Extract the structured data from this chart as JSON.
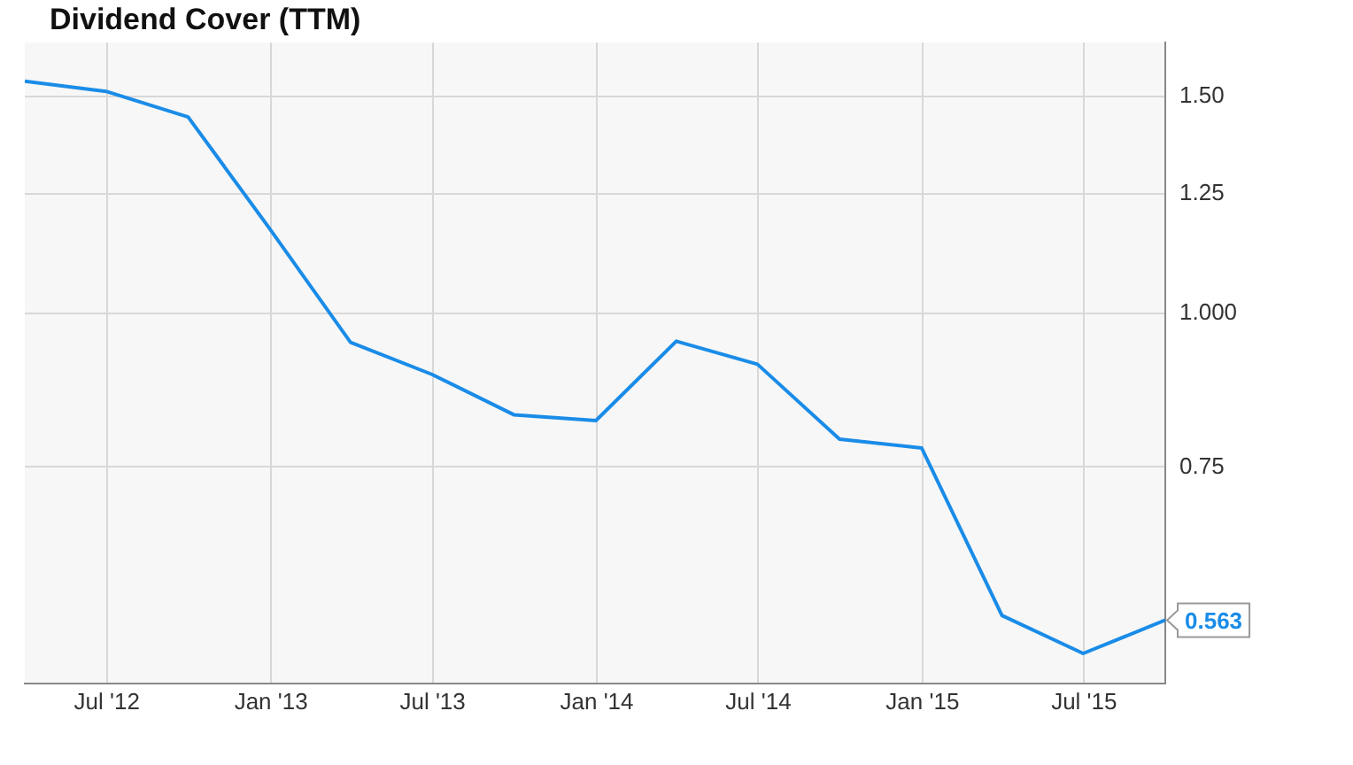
{
  "chart_data": {
    "type": "line",
    "title": "Dividend Cover (TTM)",
    "x": [
      "2012-03-31",
      "2012-06-30",
      "2012-09-30",
      "2012-12-31",
      "2013-03-31",
      "2013-06-30",
      "2013-09-30",
      "2013-12-31",
      "2014-03-31",
      "2014-06-30",
      "2014-09-30",
      "2014-12-31",
      "2015-03-31",
      "2015-06-30",
      "2015-09-30"
    ],
    "series": [
      {
        "color": "#1a8ce8",
        "values": [
          1.544,
          1.515,
          1.444,
          1.17,
          0.947,
          0.892,
          0.827,
          0.818,
          0.949,
          0.909,
          0.79,
          0.777,
          0.568,
          0.529,
          0.563
        ],
        "value_labels": [
          null,
          null,
          null,
          null,
          null,
          null,
          null,
          null,
          null,
          null,
          null,
          null,
          null,
          null,
          "0.563"
        ]
      }
    ],
    "xlim": [
      "2012-03-31",
      "2015-09-30"
    ],
    "xticks": [
      {
        "value": "2012-07-01",
        "label": "Jul '12"
      },
      {
        "value": "2013-01-01",
        "label": "Jan '13"
      },
      {
        "value": "2013-07-01",
        "label": "Jul '13"
      },
      {
        "value": "2014-01-01",
        "label": "Jan '14"
      },
      {
        "value": "2014-07-01",
        "label": "Jul '14"
      },
      {
        "value": "2015-01-01",
        "label": "Jan '15"
      },
      {
        "value": "2015-07-01",
        "label": "Jul '15"
      }
    ],
    "ylim": [
      0.5,
      1.66
    ],
    "yticks": [
      {
        "value": 0.75,
        "label": "0.75"
      },
      {
        "value": 1,
        "label": "1.000"
      },
      {
        "value": 1.25,
        "label": "1.25"
      },
      {
        "value": 1.5,
        "label": "1.50"
      }
    ],
    "log": "y",
    "grid": true,
    "legend": false,
    "marker": "none",
    "line_style": "solid"
  }
}
